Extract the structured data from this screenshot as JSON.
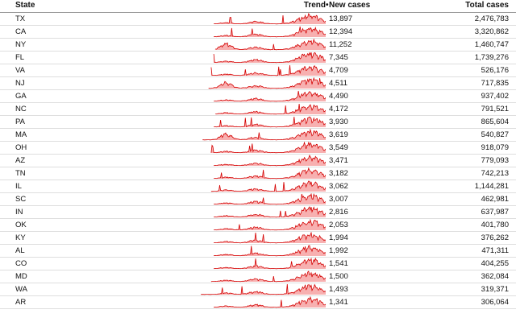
{
  "columns": {
    "state": "State",
    "trend": "Trend",
    "new_cases": "New cases",
    "total_cases": "Total cases"
  },
  "colors": {
    "trend_line": "#d40000",
    "trend_fill": "#f7b0b0",
    "header_border": "#9a9a9a",
    "row_border": "#dedede"
  },
  "rows": [
    {
      "state": "TX",
      "new_cases": "13,897",
      "total_cases": "2,476,783",
      "profile": "TX",
      "start": 0.12
    },
    {
      "state": "CA",
      "new_cases": "12,394",
      "total_cases": "3,320,862",
      "profile": "CA",
      "start": 0.12
    },
    {
      "state": "NY",
      "new_cases": "11,252",
      "total_cases": "1,460,747",
      "profile": "NY",
      "start": 0.13
    },
    {
      "state": "FL",
      "new_cases": "7,345",
      "total_cases": "1,739,276",
      "profile": "FL",
      "start": 0.12
    },
    {
      "state": "VA",
      "new_cases": "4,709",
      "total_cases": "526,176",
      "profile": "VA",
      "start": 0.1
    },
    {
      "state": "NJ",
      "new_cases": "4,511",
      "total_cases": "717,835",
      "profile": "NJ",
      "start": 0.08
    },
    {
      "state": "GA",
      "new_cases": "4,490",
      "total_cases": "937,402",
      "profile": "GA",
      "start": 0.12
    },
    {
      "state": "NC",
      "new_cases": "4,172",
      "total_cases": "791,521",
      "profile": "NC",
      "start": 0.13
    },
    {
      "state": "PA",
      "new_cases": "3,930",
      "total_cases": "865,604",
      "profile": "PA",
      "start": 0.12
    },
    {
      "state": "MA",
      "new_cases": "3,619",
      "total_cases": "540,827",
      "profile": "MA",
      "start": 0.03
    },
    {
      "state": "OH",
      "new_cases": "3,549",
      "total_cases": "918,079",
      "profile": "OH",
      "start": 0.1
    },
    {
      "state": "AZ",
      "new_cases": "3,471",
      "total_cases": "779,093",
      "profile": "AZ",
      "start": 0.12
    },
    {
      "state": "TN",
      "new_cases": "3,182",
      "total_cases": "742,213",
      "profile": "TN",
      "start": 0.12
    },
    {
      "state": "IL",
      "new_cases": "3,062",
      "total_cases": "1,144,281",
      "profile": "IL",
      "start": 0.1
    },
    {
      "state": "SC",
      "new_cases": "3,007",
      "total_cases": "462,981",
      "profile": "SC",
      "start": 0.12
    },
    {
      "state": "IN",
      "new_cases": "2,816",
      "total_cases": "637,987",
      "profile": "IN",
      "start": 0.12
    },
    {
      "state": "OK",
      "new_cases": "2,053",
      "total_cases": "401,780",
      "profile": "OK",
      "start": 0.12
    },
    {
      "state": "KY",
      "new_cases": "1,994",
      "total_cases": "376,262",
      "profile": "KY",
      "start": 0.12
    },
    {
      "state": "AL",
      "new_cases": "1,992",
      "total_cases": "471,311",
      "profile": "AL",
      "start": 0.12
    },
    {
      "state": "CO",
      "new_cases": "1,541",
      "total_cases": "404,255",
      "profile": "CO",
      "start": 0.12
    },
    {
      "state": "MD",
      "new_cases": "1,500",
      "total_cases": "362,084",
      "profile": "MD",
      "start": 0.1
    },
    {
      "state": "WA",
      "new_cases": "1,493",
      "total_cases": "319,371",
      "profile": "WA",
      "start": 0.02
    },
    {
      "state": "AR",
      "new_cases": "1,341",
      "total_cases": "306,064",
      "profile": "AR",
      "start": 0.12
    }
  ]
}
